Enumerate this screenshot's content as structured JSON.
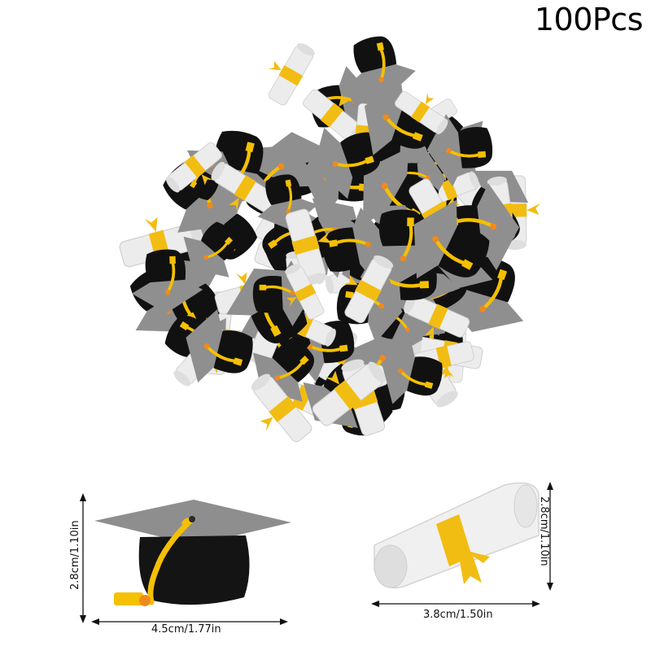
{
  "title": "100Pcs",
  "colors": {
    "cap_black": "#111111",
    "cap_gray": "#8c8c8c",
    "tassel_yellow": "#f5c000",
    "tassel_orange": "#f08a1c",
    "scroll_white": "#eeeeee",
    "ribbon_yellow": "#f2bd12"
  },
  "cap": {
    "height_label": "2.8cm/1.10in",
    "width_label": "4.5cm/1.77in"
  },
  "diploma": {
    "height_label": "2.8cm/1.10in",
    "width_label": "3.8cm/1.50in"
  }
}
